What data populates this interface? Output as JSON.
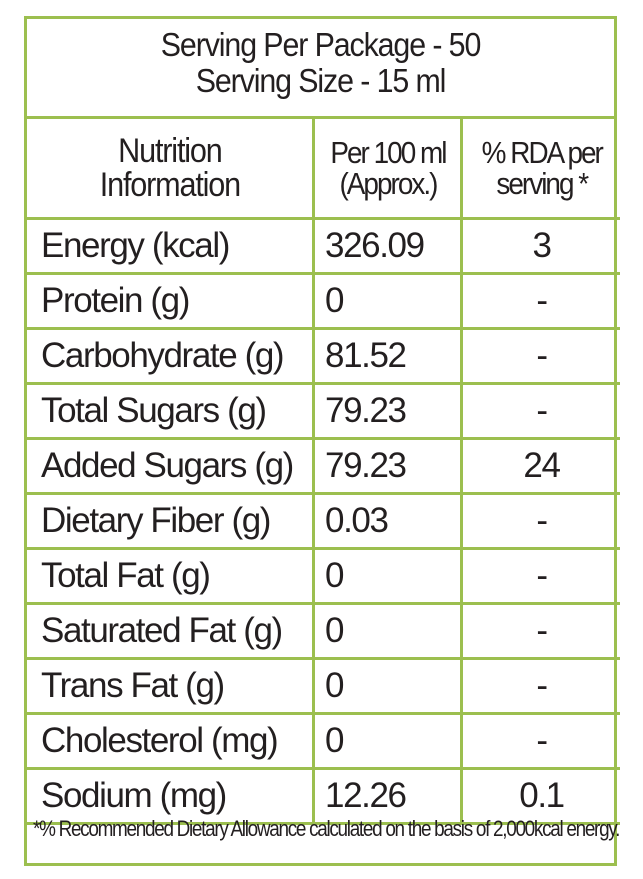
{
  "header": {
    "serving_per_package": "Serving Per Package - 50",
    "serving_size": "Serving Size - 15 ml"
  },
  "columns": {
    "nutrition_line1": "Nutrition",
    "nutrition_line2": "Information",
    "per100_line1": "Per 100 ml",
    "per100_line2": "(Approx.)",
    "rda_line1": "% RDA per",
    "rda_line2": "serving *"
  },
  "rows": [
    {
      "name": "Energy (kcal)",
      "value": "326.09",
      "rda": "3"
    },
    {
      "name": "Protein (g)",
      "value": "0",
      "rda": "-"
    },
    {
      "name": "Carbohydrate (g)",
      "value": "81.52",
      "rda": "-"
    },
    {
      "name": "Total Sugars (g)",
      "value": "79.23",
      "rda": "-"
    },
    {
      "name": "Added Sugars (g)",
      "value": "79.23",
      "rda": "24"
    },
    {
      "name": "Dietary Fiber (g)",
      "value": "0.03",
      "rda": "-"
    },
    {
      "name": "Total Fat (g)",
      "value": "0",
      "rda": "-"
    },
    {
      "name": "Saturated Fat (g)",
      "value": "0",
      "rda": "-"
    },
    {
      "name": "Trans Fat (g)",
      "value": "0",
      "rda": "-"
    },
    {
      "name": "Cholesterol (mg)",
      "value": "0",
      "rda": "-"
    },
    {
      "name": "Sodium (mg)",
      "value": "12.26",
      "rda": "0.1"
    }
  ],
  "footnote": "*% Recommended Dietary Allowance calculated on the basis of 2,000kcal energy.",
  "colors": {
    "border": "#9cbf4f",
    "text": "#231f20"
  }
}
